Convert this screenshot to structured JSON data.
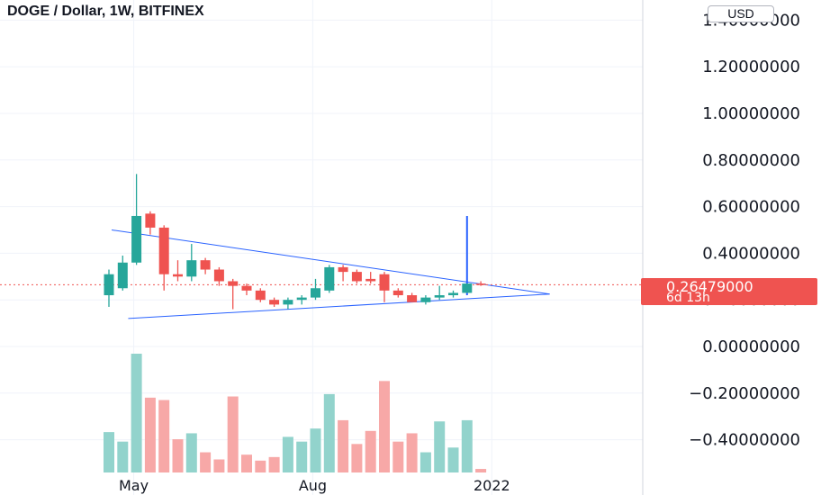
{
  "header": {
    "title": "DOGE / Dollar, 1W, BITFINEX",
    "currency": "USD"
  },
  "price_tag": {
    "value": "0.26479000",
    "countdown": "6d 13h"
  },
  "colors": {
    "up": "#26a69a",
    "down": "#ef5350",
    "up_volume": "#92d3cc",
    "down_volume": "#f7a8a7",
    "trendline": "#2962ff",
    "grid": "#f0f3fa"
  },
  "chart_data": {
    "type": "candlestick",
    "title": "DOGE / Dollar, 1W, BITFINEX",
    "currency": "USD",
    "y_ticks": [
      "1.40000000",
      "1.20000000",
      "1.00000000",
      "0.80000000",
      "0.60000000",
      "0.40000000",
      "0.20000000",
      "0.00000000",
      "−0.20000000",
      "−0.40000000"
    ],
    "y_tick_values": [
      1.4,
      1.2,
      1.0,
      0.8,
      0.6,
      0.4,
      0.2,
      0.0,
      -0.2,
      -0.4
    ],
    "x_ticks": [
      {
        "label": "May",
        "index": 1.8
      },
      {
        "label": "Aug",
        "index": 14.8
      },
      {
        "label": "2022",
        "index": 27.8
      }
    ],
    "ylim": [
      -0.55,
      1.45
    ],
    "last_price": 0.26479,
    "candles": [
      {
        "o": 0.22,
        "h": 0.33,
        "l": 0.17,
        "c": 0.31
      },
      {
        "o": 0.25,
        "h": 0.39,
        "l": 0.24,
        "c": 0.36
      },
      {
        "o": 0.36,
        "h": 0.74,
        "l": 0.35,
        "c": 0.56
      },
      {
        "o": 0.57,
        "h": 0.58,
        "l": 0.48,
        "c": 0.51
      },
      {
        "o": 0.51,
        "h": 0.52,
        "l": 0.24,
        "c": 0.31
      },
      {
        "o": 0.31,
        "h": 0.37,
        "l": 0.28,
        "c": 0.3
      },
      {
        "o": 0.3,
        "h": 0.44,
        "l": 0.28,
        "c": 0.37
      },
      {
        "o": 0.37,
        "h": 0.38,
        "l": 0.31,
        "c": 0.33
      },
      {
        "o": 0.33,
        "h": 0.34,
        "l": 0.26,
        "c": 0.28
      },
      {
        "o": 0.28,
        "h": 0.29,
        "l": 0.16,
        "c": 0.26
      },
      {
        "o": 0.26,
        "h": 0.27,
        "l": 0.22,
        "c": 0.24
      },
      {
        "o": 0.24,
        "h": 0.25,
        "l": 0.19,
        "c": 0.2
      },
      {
        "o": 0.2,
        "h": 0.21,
        "l": 0.17,
        "c": 0.18
      },
      {
        "o": 0.18,
        "h": 0.21,
        "l": 0.16,
        "c": 0.2
      },
      {
        "o": 0.2,
        "h": 0.22,
        "l": 0.18,
        "c": 0.21
      },
      {
        "o": 0.21,
        "h": 0.29,
        "l": 0.2,
        "c": 0.25
      },
      {
        "o": 0.24,
        "h": 0.35,
        "l": 0.23,
        "c": 0.34
      },
      {
        "o": 0.34,
        "h": 0.35,
        "l": 0.28,
        "c": 0.32
      },
      {
        "o": 0.32,
        "h": 0.33,
        "l": 0.27,
        "c": 0.28
      },
      {
        "o": 0.29,
        "h": 0.32,
        "l": 0.27,
        "c": 0.28
      },
      {
        "o": 0.31,
        "h": 0.32,
        "l": 0.19,
        "c": 0.24
      },
      {
        "o": 0.24,
        "h": 0.25,
        "l": 0.21,
        "c": 0.22
      },
      {
        "o": 0.22,
        "h": 0.23,
        "l": 0.19,
        "c": 0.19
      },
      {
        "o": 0.19,
        "h": 0.22,
        "l": 0.18,
        "c": 0.21
      },
      {
        "o": 0.21,
        "h": 0.26,
        "l": 0.2,
        "c": 0.22
      },
      {
        "o": 0.22,
        "h": 0.24,
        "l": 0.21,
        "c": 0.23
      },
      {
        "o": 0.23,
        "h": 0.56,
        "l": 0.22,
        "c": 0.27
      },
      {
        "o": 0.27,
        "h": 0.28,
        "l": 0.26,
        "c": 0.265
      }
    ],
    "volume": [
      0.34,
      0.26,
      1.0,
      0.63,
      0.61,
      0.28,
      0.33,
      0.17,
      0.11,
      0.64,
      0.15,
      0.1,
      0.13,
      0.3,
      0.26,
      0.37,
      0.66,
      0.44,
      0.24,
      0.35,
      0.77,
      0.26,
      0.33,
      0.17,
      0.43,
      0.21,
      0.44,
      0.03
    ],
    "trendlines": [
      {
        "from": {
          "index": 0.2,
          "value": 0.5
        },
        "to": {
          "index": 32.0,
          "value": 0.225
        }
      },
      {
        "from": {
          "index": 1.4,
          "value": 0.12
        },
        "to": {
          "index": 32.0,
          "value": 0.225
        }
      }
    ]
  }
}
